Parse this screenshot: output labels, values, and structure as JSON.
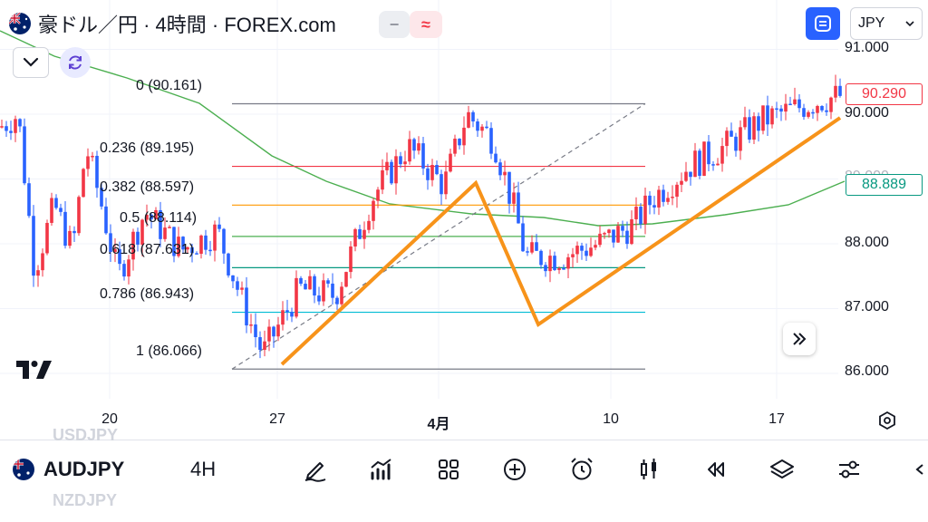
{
  "header": {
    "title": "豪ドル／円 · 4時間 · FOREX.com",
    "toggle_grey": "−",
    "toggle_red": "≈"
  },
  "currency_select": {
    "value": "JPY"
  },
  "price_axis": {
    "labels": [
      "91.000",
      "90.000",
      "89.000",
      "88.000",
      "87.000",
      "86.000"
    ],
    "current_price": "90.290",
    "current_price_color": "#f23645",
    "ma_price": "88.889",
    "ma_price_color": "#089981"
  },
  "time_axis": {
    "labels": [
      "20",
      "27",
      "4月",
      "10",
      "17"
    ]
  },
  "fibonacci": [
    {
      "text": "0 (90.161)",
      "color": "#787b86"
    },
    {
      "text": "0.236 (89.195)",
      "color": "#f23645"
    },
    {
      "text": "0.382 (88.597)",
      "color": "#ff9800"
    },
    {
      "text": "0.5 (88.114)",
      "color": "#4caf50"
    },
    {
      "text": "0.618 (87.631)",
      "color": "#089981"
    },
    {
      "text": "0.786 (86.943)",
      "color": "#00bcd4"
    },
    {
      "text": "1 (86.066)",
      "color": "#787b86"
    }
  ],
  "colors": {
    "up_candle": "#f23645",
    "down_candle": "#2962ff",
    "moving_average": "#4caf50",
    "drawing": "#f7931a",
    "accent": "#2962ff"
  },
  "bottom_bar": {
    "symbol": "AUDJPY",
    "interval": "4H",
    "ghost_above": "USDJPY",
    "ghost_below": "NZDJPY",
    "tools": [
      "brush-icon",
      "indicators-icon",
      "layout-grid-icon",
      "add-circle-icon",
      "alarm-icon",
      "candles-icon",
      "replay-icon",
      "layers-icon",
      "settings-sliders-icon"
    ]
  }
}
